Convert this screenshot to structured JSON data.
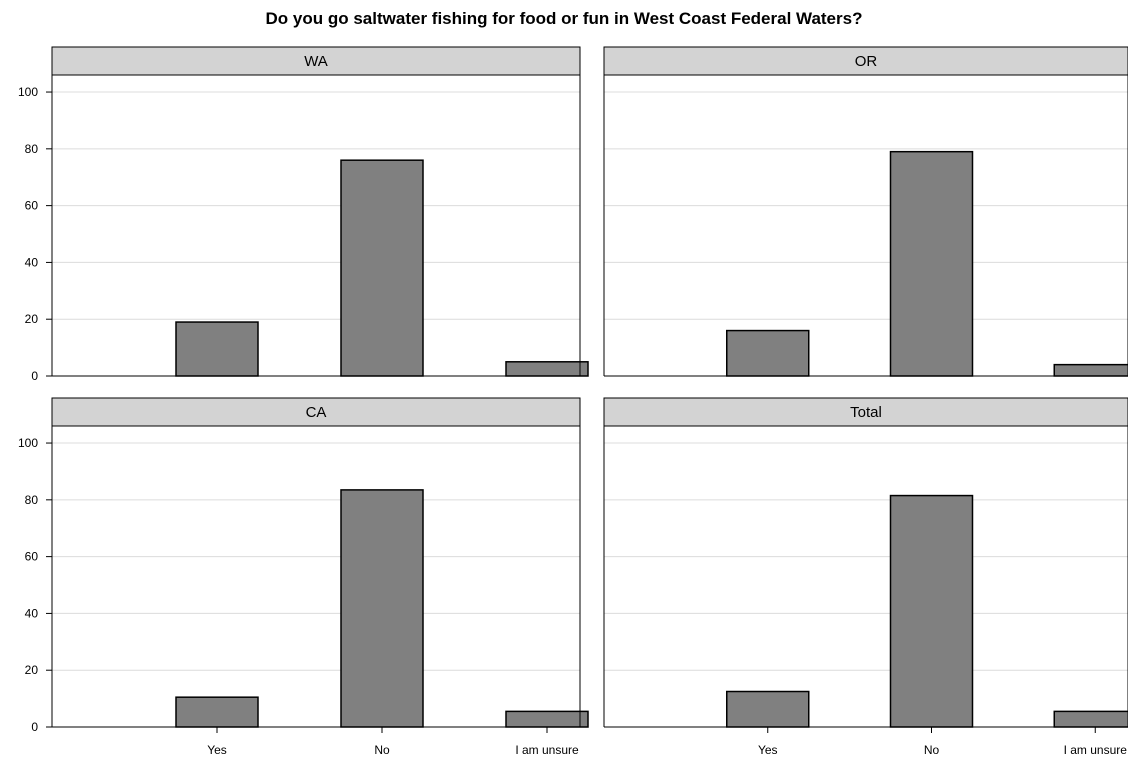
{
  "chart_data": {
    "type": "bar",
    "title": "Do you go saltwater fishing for food or fun in West Coast Federal Waters?",
    "categories": [
      "Yes",
      "No",
      "I am unsure"
    ],
    "ylim": [
      0,
      106
    ],
    "yticks": [
      "0",
      "20",
      "40",
      "60",
      "80",
      "100"
    ],
    "grid": true,
    "bar_color": "#808080",
    "panels": [
      {
        "name": "WA",
        "values": [
          19,
          76,
          5
        ]
      },
      {
        "name": "OR",
        "values": [
          16,
          79,
          4
        ]
      },
      {
        "name": "CA",
        "values": [
          10.5,
          83.5,
          5.5
        ]
      },
      {
        "name": "Total",
        "values": [
          12.5,
          81.5,
          5.5
        ]
      }
    ]
  }
}
